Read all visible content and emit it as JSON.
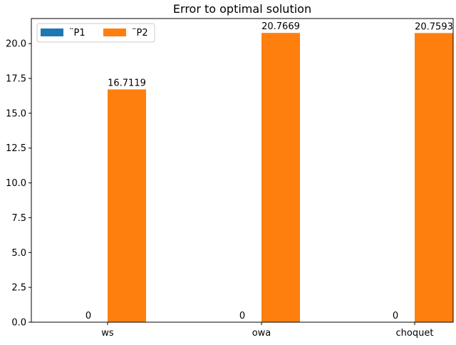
{
  "chart_data": {
    "type": "bar",
    "title": "Error to optimal solution",
    "xlabel": "",
    "ylabel": "",
    "categories": [
      "ws",
      "owa",
      "choquet"
    ],
    "series": [
      {
        "name": "¨P1",
        "color": "#1f77b4",
        "values": [
          0,
          0,
          0
        ],
        "labels": [
          "0",
          "0",
          "0"
        ]
      },
      {
        "name": "¨P2",
        "color": "#ff7f0e",
        "values": [
          16.7119,
          20.7669,
          20.7593
        ],
        "labels": [
          "16.7119",
          "20.7669",
          "20.7593"
        ]
      }
    ],
    "ylim": [
      0,
      21.8
    ],
    "yticks": [
      0.0,
      2.5,
      5.0,
      7.5,
      10.0,
      12.5,
      15.0,
      17.5,
      20.0
    ],
    "ytick_labels": [
      "0.0",
      "2.5",
      "5.0",
      "7.5",
      "10.0",
      "12.5",
      "15.0",
      "17.5",
      "20.0"
    ],
    "grid": false,
    "legend": "top-left",
    "legend_columns": 2
  }
}
